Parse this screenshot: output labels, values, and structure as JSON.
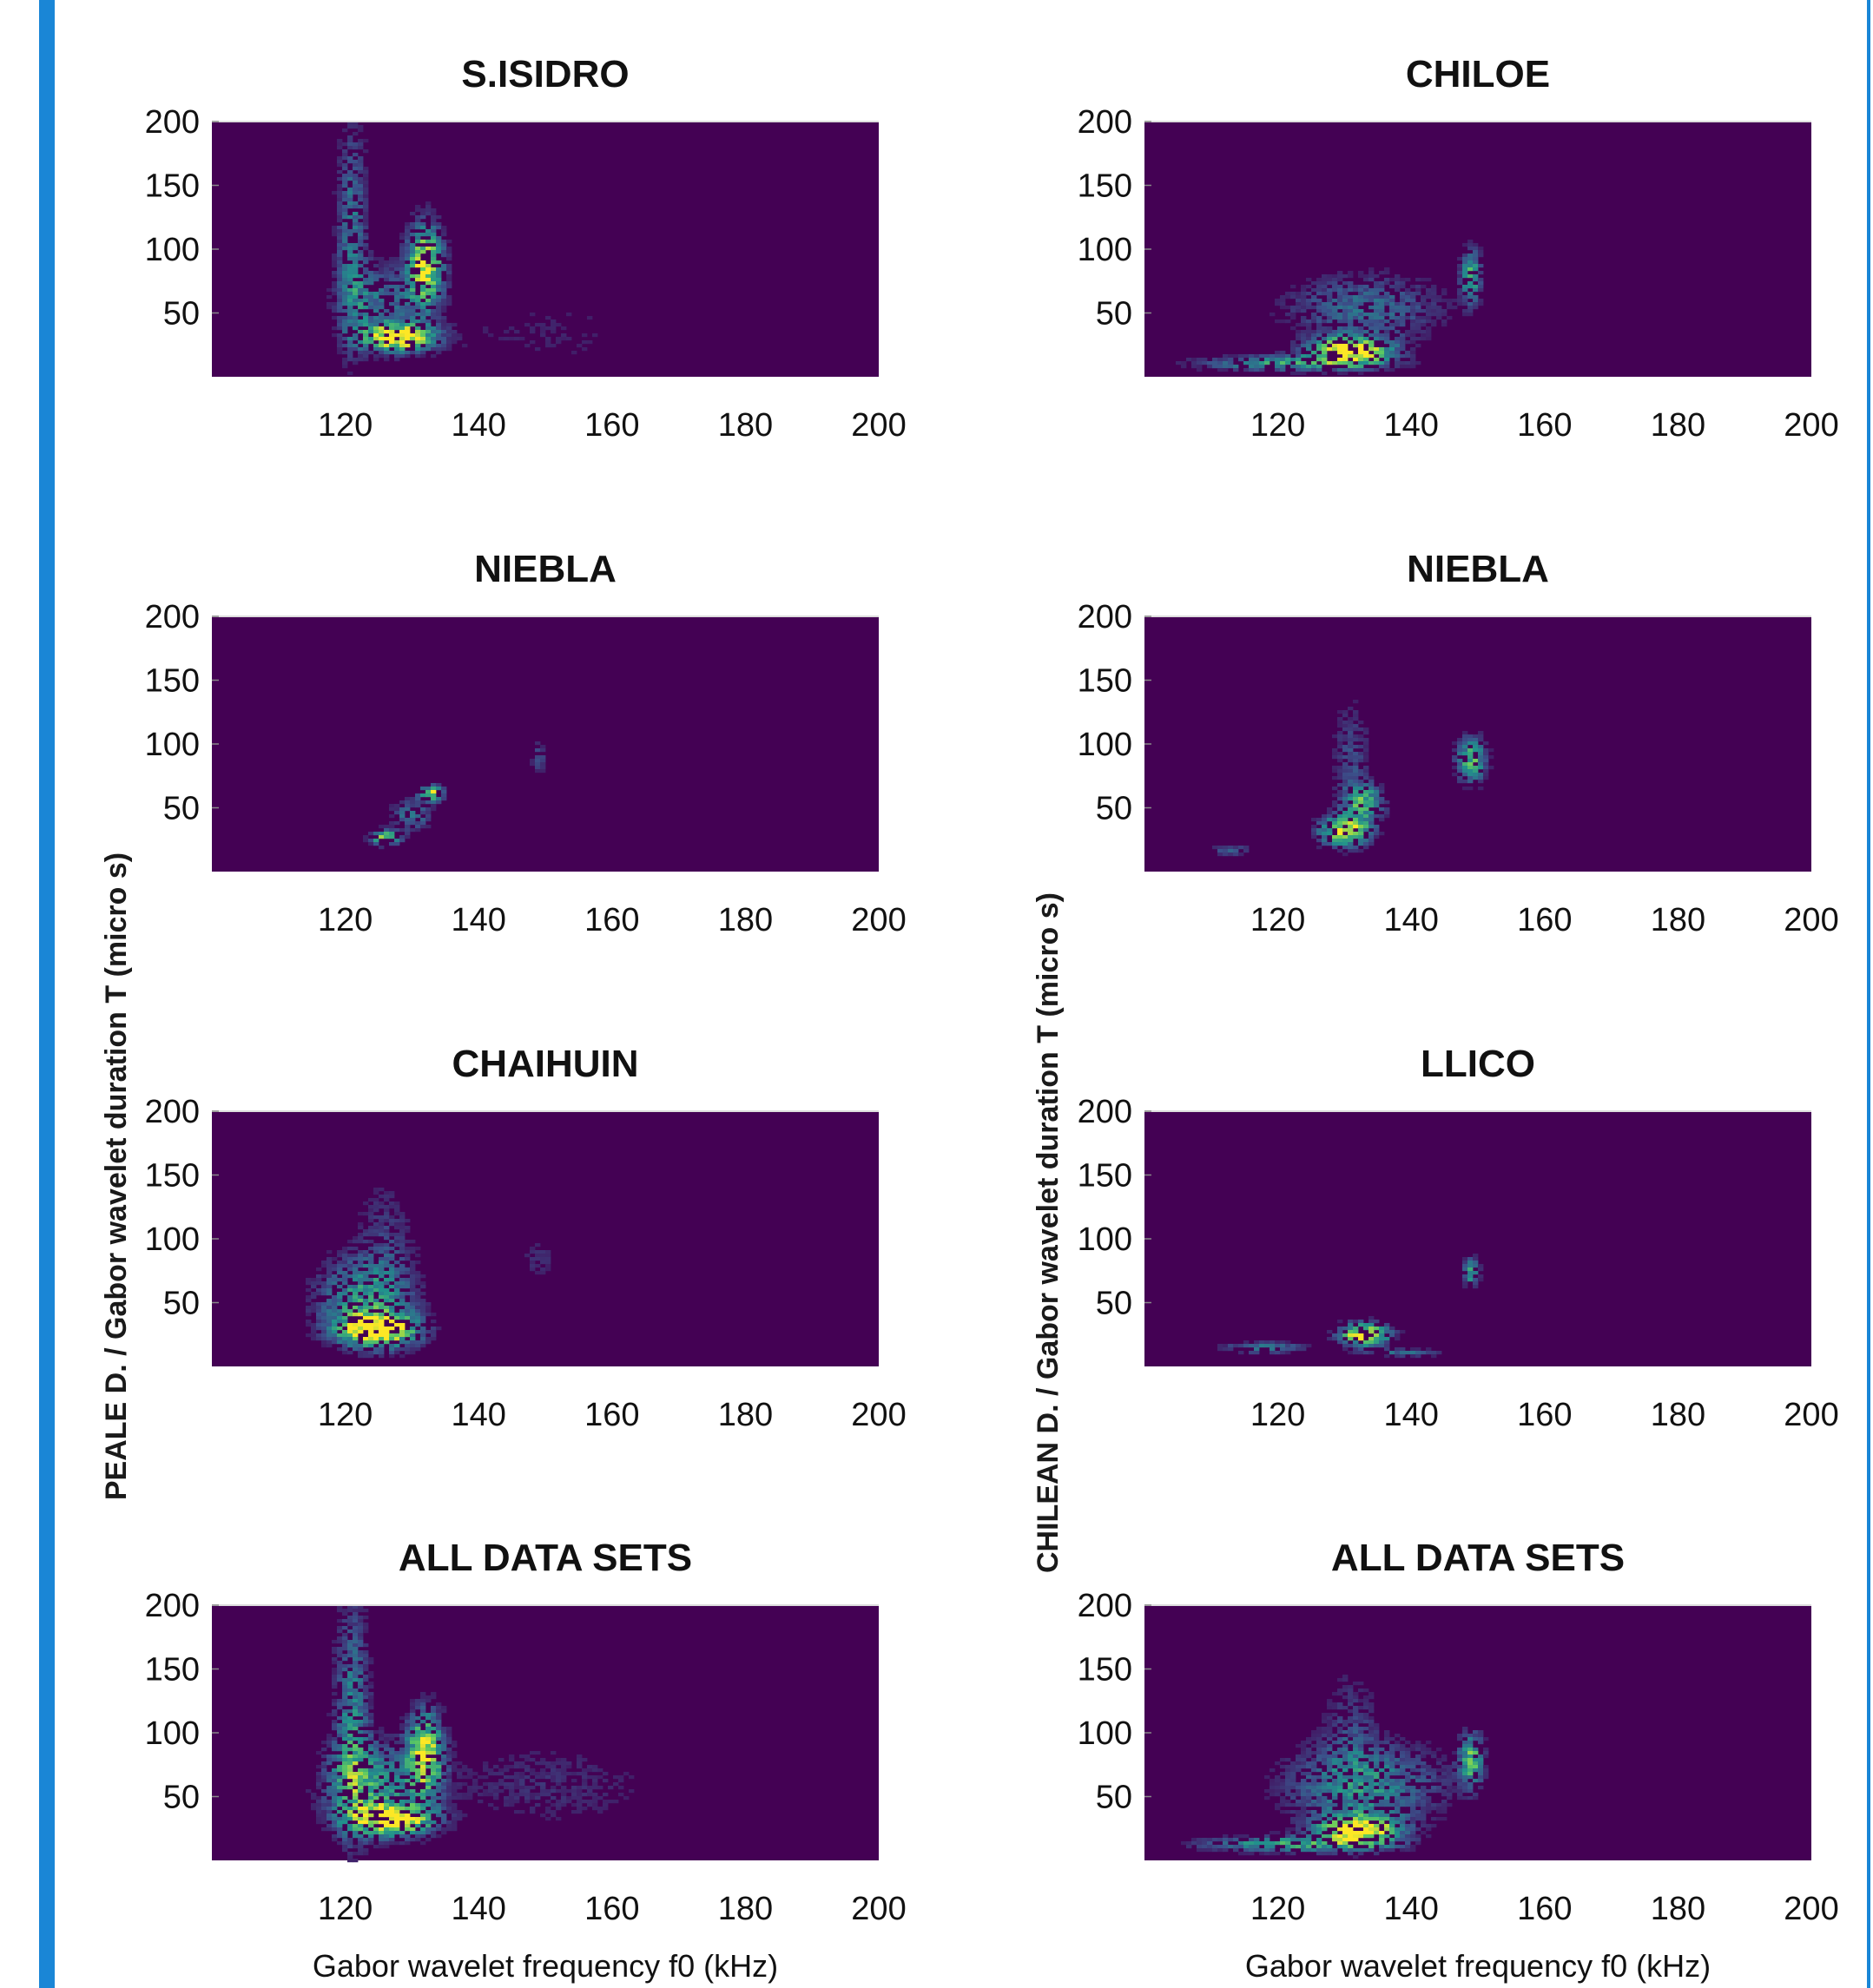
{
  "chart_data": [
    {
      "type": "heatmap",
      "title": "S.ISIDRO",
      "xlabel": "",
      "ylabel": "",
      "xlim": [
        100,
        200
      ],
      "ylim": [
        0,
        200
      ],
      "x_ticks": [
        "120",
        "140",
        "160",
        "180",
        "200"
      ],
      "y_ticks": [
        "200",
        "150",
        "100",
        "50"
      ],
      "hotspots": [
        {
          "x": 128,
          "y": 32,
          "sx": 3.5,
          "sy": 7,
          "w": 1.0
        },
        {
          "x": 132,
          "y": 88,
          "sx": 1.8,
          "sy": 22,
          "w": 0.85
        },
        {
          "x": 121,
          "y": 110,
          "sx": 1.5,
          "sy": 60,
          "w": 0.35
        },
        {
          "x": 125,
          "y": 60,
          "sx": 4,
          "sy": 20,
          "w": 0.3
        },
        {
          "x": 150,
          "y": 35,
          "sx": 14,
          "sy": 25,
          "w": 0.08
        }
      ]
    },
    {
      "type": "heatmap",
      "title": "CHILOE",
      "xlabel": "",
      "ylabel": "",
      "xlim": [
        100,
        200
      ],
      "ylim": [
        0,
        200
      ],
      "x_ticks": [
        "120",
        "140",
        "160",
        "180",
        "200"
      ],
      "y_ticks": [
        "200",
        "150",
        "100",
        "50"
      ],
      "hotspots": [
        {
          "x": 131,
          "y": 22,
          "sx": 4,
          "sy": 7,
          "w": 1.0
        },
        {
          "x": 149,
          "y": 80,
          "sx": 1,
          "sy": 14,
          "w": 0.55
        },
        {
          "x": 122,
          "y": 12,
          "sx": 9,
          "sy": 4,
          "w": 0.5
        },
        {
          "x": 133,
          "y": 55,
          "sx": 8,
          "sy": 18,
          "w": 0.3
        }
      ]
    },
    {
      "type": "heatmap",
      "title": "NIEBLA",
      "xlabel": "",
      "ylabel": "",
      "xlim": [
        100,
        200
      ],
      "ylim": [
        0,
        200
      ],
      "x_ticks": [
        "120",
        "140",
        "160",
        "180",
        "200"
      ],
      "y_ticks": [
        "200",
        "150",
        "100",
        "50"
      ],
      "hotspots": [
        {
          "x": 133,
          "y": 62,
          "sx": 1.2,
          "sy": 4,
          "w": 0.8
        },
        {
          "x": 126,
          "y": 28,
          "sx": 1.5,
          "sy": 4,
          "w": 0.7
        },
        {
          "x": 130,
          "y": 45,
          "sx": 2,
          "sy": 8,
          "w": 0.35
        },
        {
          "x": 149,
          "y": 90,
          "sx": 0.8,
          "sy": 10,
          "w": 0.2
        }
      ]
    },
    {
      "type": "heatmap",
      "title": "NIEBLA",
      "xlabel": "",
      "ylabel": "",
      "xlim": [
        100,
        200
      ],
      "ylim": [
        0,
        200
      ],
      "x_ticks": [
        "120",
        "140",
        "160",
        "180",
        "200"
      ],
      "y_ticks": [
        "200",
        "150",
        "100",
        "50"
      ],
      "hotspots": [
        {
          "x": 130,
          "y": 33,
          "sx": 2.5,
          "sy": 8,
          "w": 0.85
        },
        {
          "x": 133,
          "y": 55,
          "sx": 2,
          "sy": 10,
          "w": 0.55
        },
        {
          "x": 149,
          "y": 88,
          "sx": 1.5,
          "sy": 12,
          "w": 0.6
        },
        {
          "x": 131,
          "y": 90,
          "sx": 2,
          "sy": 30,
          "w": 0.2
        },
        {
          "x": 113,
          "y": 18,
          "sx": 2,
          "sy": 3,
          "w": 0.25
        }
      ]
    },
    {
      "type": "heatmap",
      "title": "CHAIHUIN",
      "xlabel": "",
      "ylabel": "",
      "xlim": [
        100,
        200
      ],
      "ylim": [
        0,
        200
      ],
      "x_ticks": [
        "120",
        "140",
        "160",
        "180",
        "200"
      ],
      "y_ticks": [
        "200",
        "150",
        "100",
        "50"
      ],
      "hotspots": [
        {
          "x": 125,
          "y": 30,
          "sx": 4,
          "sy": 9,
          "w": 0.95
        },
        {
          "x": 123,
          "y": 55,
          "sx": 5,
          "sy": 22,
          "w": 0.45
        },
        {
          "x": 126,
          "y": 105,
          "sx": 3,
          "sy": 30,
          "w": 0.15
        },
        {
          "x": 149,
          "y": 85,
          "sx": 2,
          "sy": 12,
          "w": 0.12
        }
      ]
    },
    {
      "type": "heatmap",
      "title": "LLICO",
      "xlabel": "",
      "ylabel": "",
      "xlim": [
        100,
        200
      ],
      "ylim": [
        0,
        200
      ],
      "x_ticks": [
        "120",
        "140",
        "160",
        "180",
        "200"
      ],
      "y_ticks": [
        "200",
        "150",
        "100",
        "50"
      ],
      "hotspots": [
        {
          "x": 133,
          "y": 26,
          "sx": 2.5,
          "sy": 6,
          "w": 0.95
        },
        {
          "x": 149,
          "y": 75,
          "sx": 0.8,
          "sy": 8,
          "w": 0.5
        },
        {
          "x": 118,
          "y": 16,
          "sx": 4,
          "sy": 3,
          "w": 0.4
        },
        {
          "x": 139,
          "y": 12,
          "sx": 4,
          "sy": 2,
          "w": 0.3
        }
      ]
    },
    {
      "type": "heatmap",
      "title": "ALL DATA SETS",
      "xlabel": "Gabor wavelet frequency f0 (kHz)",
      "ylabel": "",
      "xlim": [
        100,
        200
      ],
      "ylim": [
        0,
        200
      ],
      "x_ticks": [
        "120",
        "140",
        "160",
        "180",
        "200"
      ],
      "y_ticks": [
        "200",
        "150",
        "100",
        "50"
      ],
      "hotspots": [
        {
          "x": 127,
          "y": 33,
          "sx": 4,
          "sy": 8,
          "w": 1.0
        },
        {
          "x": 132,
          "y": 85,
          "sx": 1.8,
          "sy": 22,
          "w": 0.8
        },
        {
          "x": 121,
          "y": 110,
          "sx": 1.8,
          "sy": 60,
          "w": 0.4
        },
        {
          "x": 124,
          "y": 60,
          "sx": 5,
          "sy": 22,
          "w": 0.45
        },
        {
          "x": 150,
          "y": 60,
          "sx": 12,
          "sy": 25,
          "w": 0.12
        }
      ]
    },
    {
      "type": "heatmap",
      "title": "ALL DATA SETS",
      "xlabel": "Gabor wavelet frequency f0 (kHz)",
      "ylabel": "",
      "xlim": [
        100,
        200
      ],
      "ylim": [
        0,
        200
      ],
      "x_ticks": [
        "120",
        "140",
        "160",
        "180",
        "200"
      ],
      "y_ticks": [
        "200",
        "150",
        "100",
        "50"
      ],
      "hotspots": [
        {
          "x": 132,
          "y": 25,
          "sx": 4,
          "sy": 8,
          "w": 1.0
        },
        {
          "x": 149,
          "y": 80,
          "sx": 1.2,
          "sy": 14,
          "w": 0.6
        },
        {
          "x": 122,
          "y": 14,
          "sx": 9,
          "sy": 4,
          "w": 0.5
        },
        {
          "x": 133,
          "y": 60,
          "sx": 8,
          "sy": 22,
          "w": 0.4
        },
        {
          "x": 131,
          "y": 105,
          "sx": 3,
          "sy": 35,
          "w": 0.15
        }
      ]
    }
  ],
  "figure": {
    "left_ylabel": "PEALE D. / Gabor wavelet duration T (micro s)",
    "right_ylabel": "CHILEAN D. / Gabor wavelet duration T (micro s)",
    "colormap": [
      "#440154",
      "#3b528b",
      "#21918c",
      "#5ec962",
      "#fde725"
    ],
    "accent_bar_color": "#1a86d6"
  }
}
